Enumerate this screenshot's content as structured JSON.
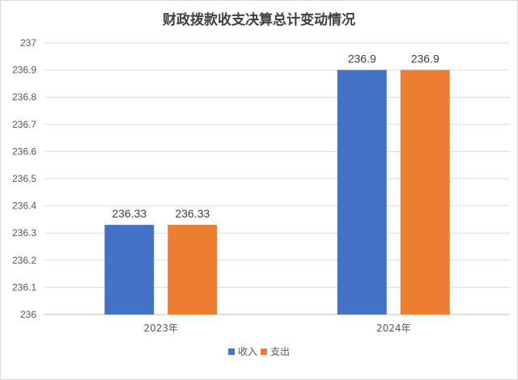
{
  "chart_data": {
    "type": "bar",
    "title": "财政拨款收支决算总计变动情况",
    "categories": [
      "2023年",
      "2024年"
    ],
    "series": [
      {
        "name": "收入",
        "values": [
          236.33,
          236.9
        ],
        "labels": [
          "236.33",
          "236.9"
        ],
        "color": "#4472C4"
      },
      {
        "name": "支出",
        "values": [
          236.33,
          236.9
        ],
        "labels": [
          "236.33",
          "236.9"
        ],
        "color": "#ED7D31"
      }
    ],
    "ylim": [
      236,
      237
    ],
    "yticks": [
      "236",
      "236.1",
      "236.2",
      "236.3",
      "236.4",
      "236.5",
      "236.6",
      "236.7",
      "236.8",
      "236.9",
      "237"
    ],
    "grid": true,
    "legend": "bottom",
    "xlabel": "",
    "ylabel": ""
  }
}
